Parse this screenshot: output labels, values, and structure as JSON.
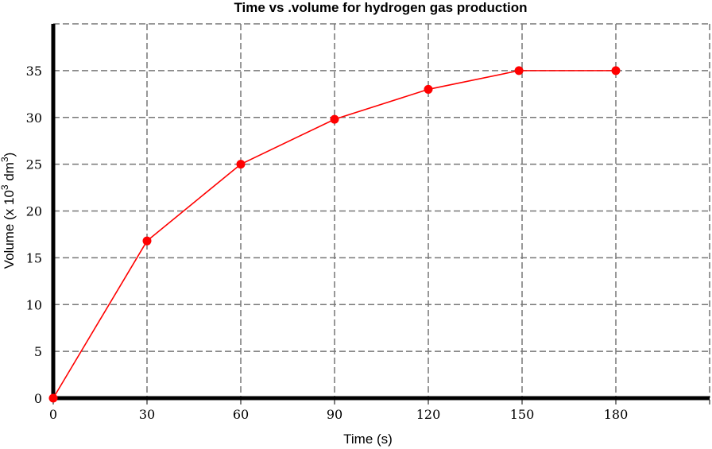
{
  "chart_data": {
    "type": "line",
    "title": "Time vs .volume for hydrogen gas production",
    "xlabel": "Time (s)",
    "ylabel": "Volume (x 10",
    "ylabel_sup": "3",
    "ylabel_mid": " dm",
    "ylabel_sup2": "3",
    "ylabel_end": ")",
    "x_ticks": [
      "0",
      "30",
      "60",
      "90",
      "120",
      "150",
      "180"
    ],
    "y_ticks": [
      "0",
      "5",
      "10",
      "15",
      "20",
      "25",
      "30",
      "35"
    ],
    "xlim": [
      0,
      210
    ],
    "ylim": [
      0,
      40
    ],
    "grid": true,
    "series": [
      {
        "color": "#ff0000",
        "x": [
          0,
          30,
          60,
          90,
          120,
          149,
          180
        ],
        "y": [
          0,
          16.8,
          25,
          29.8,
          33,
          35,
          35
        ]
      }
    ]
  }
}
